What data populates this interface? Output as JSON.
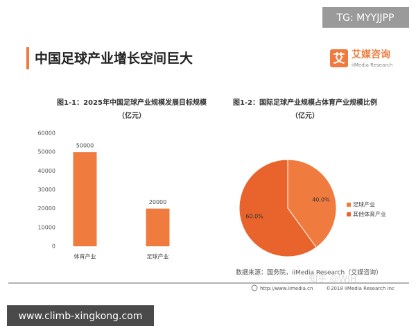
{
  "watermark_top": "TG: MYYJJPP",
  "header": {
    "title": "中国足球产业增长空间巨大",
    "logo_mark": "艾",
    "logo_name": "艾媒咨询",
    "logo_sub": "iiMedia Research"
  },
  "chart_data": [
    {
      "type": "bar",
      "title": "图1-1：2025年中国足球产业规模发展目标规模",
      "subtitle": "（亿元）",
      "categories": [
        "体育产业",
        "足球产业"
      ],
      "values": [
        50000,
        20000
      ],
      "color": "#f07b3f",
      "ylim": [
        0,
        60000
      ],
      "yticks": [
        0,
        10000,
        20000,
        30000,
        40000,
        50000,
        60000
      ],
      "grid": false
    },
    {
      "type": "pie",
      "title": "图1-2：国际足球产业规模占体育产业规模比例",
      "subtitle": "（亿元）",
      "categories": [
        "足球产业",
        "其他体育产业"
      ],
      "values": [
        40,
        60
      ],
      "value_labels": [
        "40.0%",
        "60.0%"
      ],
      "colors": [
        "#f07b3f",
        "#e8642c"
      ],
      "legend": "right"
    }
  ],
  "source": "数据来源：国务院，iiMedia Research（艾媒咨询）",
  "footer": {
    "url": "http://www.iimedia.cn",
    "copyright": "©2018 iiMedia Research Inc"
  },
  "watermark_middle": "知乎 @WJH",
  "watermark_bottom": "www.climb-xingkong.com"
}
